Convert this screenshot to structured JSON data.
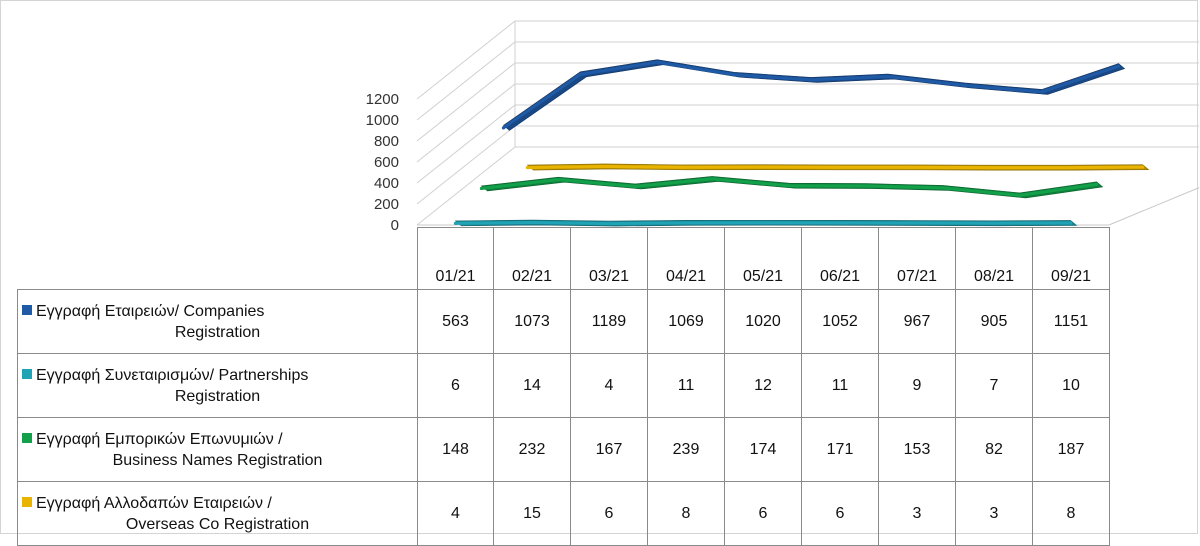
{
  "chart_data": {
    "type": "line",
    "style": "3d-ribbon",
    "categories": [
      "01/21",
      "02/21",
      "03/21",
      "04/21",
      "05/21",
      "06/21",
      "07/21",
      "08/21",
      "09/21"
    ],
    "yticks": [
      "0",
      "200",
      "400",
      "600",
      "800",
      "1000",
      "1200"
    ],
    "ylim": [
      0,
      1200
    ],
    "grid": true,
    "legend": "data-table",
    "series": [
      {
        "name_line1": "Εγγραφή Εταιρειών/ Companies",
        "name_line2": "Registration",
        "color": "#1f5aa6",
        "values": [
          563,
          1073,
          1189,
          1069,
          1020,
          1052,
          967,
          905,
          1151
        ]
      },
      {
        "name_line1": "Εγγραφή Συνεταιρισμών/ Partnerships",
        "name_line2": "Registration",
        "color": "#1fa3b5",
        "values": [
          6,
          14,
          4,
          11,
          12,
          11,
          9,
          7,
          10
        ]
      },
      {
        "name_line1": "Εγγραφή Εμπορικών Επωνυμιών /",
        "name_line2": "Business Names Registration",
        "color": "#12a04a",
        "values": [
          148,
          232,
          167,
          239,
          174,
          171,
          153,
          82,
          187
        ]
      },
      {
        "name_line1": "Εγγραφή Αλλοδαπών Εταιρειών /",
        "name_line2": "Overseas Co Registration",
        "color": "#e8b400",
        "values": [
          4,
          15,
          6,
          8,
          6,
          6,
          3,
          3,
          8
        ]
      }
    ]
  }
}
